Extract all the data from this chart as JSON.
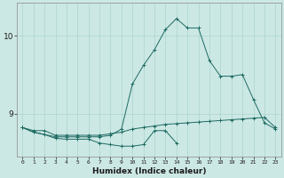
{
  "title": "",
  "xlabel": "Humidex (Indice chaleur)",
  "ylabel": "",
  "bg_color": "#cce8e4",
  "line_color": "#1e6b63",
  "grid_color": "#aad4ce",
  "x": [
    0,
    1,
    2,
    3,
    4,
    5,
    6,
    7,
    8,
    9,
    10,
    11,
    12,
    13,
    14,
    15,
    16,
    17,
    18,
    19,
    20,
    21,
    22,
    23
  ],
  "line1": [
    8.82,
    8.78,
    8.78,
    8.72,
    8.72,
    8.72,
    8.72,
    8.72,
    8.74,
    8.76,
    8.8,
    8.82,
    8.84,
    8.86,
    8.87,
    8.88,
    8.89,
    8.9,
    8.91,
    8.92,
    8.93,
    8.94,
    8.95,
    8.82
  ],
  "line2_x": [
    0,
    1,
    2,
    3,
    4,
    5,
    6,
    7,
    8,
    9,
    10,
    11,
    12,
    13,
    14
  ],
  "line2_y": [
    8.82,
    8.76,
    8.73,
    8.68,
    8.67,
    8.67,
    8.67,
    8.62,
    8.6,
    8.58,
    8.58,
    8.6,
    8.78,
    8.78,
    8.62
  ],
  "line3": [
    8.82,
    8.76,
    null,
    8.7,
    8.7,
    8.7,
    8.7,
    8.7,
    8.72,
    8.8,
    9.38,
    9.62,
    9.82,
    10.08,
    10.22,
    10.1,
    10.1,
    9.68,
    9.48,
    9.48,
    9.5,
    9.18,
    8.88,
    8.8
  ],
  "yticks": [
    9,
    10
  ],
  "ylim": [
    8.45,
    10.42
  ],
  "xlim": [
    -0.5,
    23.5
  ]
}
